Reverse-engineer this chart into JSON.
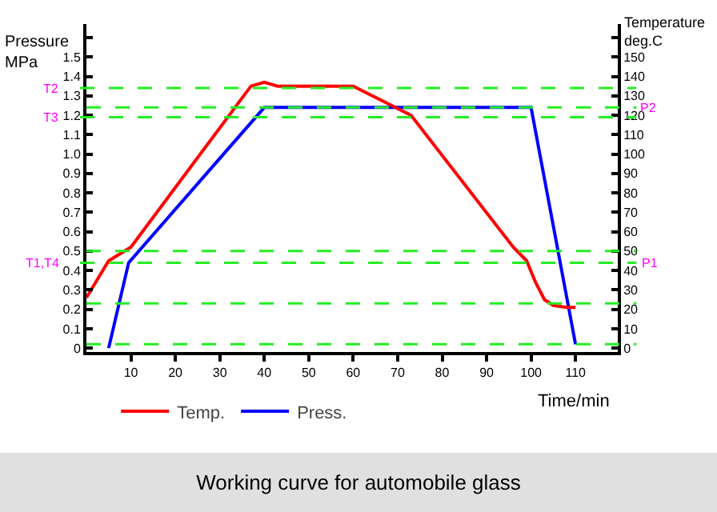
{
  "chart_data": {
    "type": "line",
    "title": "Working curve for automobile glass",
    "xlabel": "Time/min",
    "ylabel": "Pressure MPa",
    "y2label": "Temperature deg.C",
    "series": [
      {
        "name": "Temp.",
        "color": "#ff0000",
        "axis": "y2",
        "x": [
          0,
          5,
          10,
          37,
          40,
          43,
          60,
          73,
          96,
          99,
          101,
          103,
          105,
          108,
          110
        ],
        "values": [
          26,
          45,
          52,
          135,
          137,
          135,
          135,
          120,
          52,
          45,
          34,
          25,
          22,
          21,
          21
        ]
      },
      {
        "name": "Press.",
        "color": "#0000ff",
        "x": [
          5,
          9.5,
          40,
          100,
          110
        ],
        "values": [
          0,
          0.44,
          1.24,
          1.24,
          0.02
        ]
      }
    ],
    "xlim": [
      0,
      119.5
    ],
    "xticks": [
      10,
      20,
      30,
      40,
      50,
      60,
      70,
      80,
      90,
      100,
      110
    ],
    "ylim": [
      -0.02,
      1.67
    ],
    "yticks": [
      0,
      0.1,
      0.2,
      0.3,
      0.4,
      0.5,
      0.6,
      0.7,
      0.8,
      0.9,
      {
        "value": 1,
        "label": "1.0"
      },
      1.1,
      1.2,
      1.3,
      1.4,
      1.5,
      {
        "value": 1.6,
        "label": null
      }
    ],
    "y2lim": [
      -2,
      167
    ],
    "y2ticks": [
      0,
      10,
      20,
      30,
      40,
      50,
      60,
      70,
      80,
      90,
      100,
      110,
      120,
      130,
      140,
      150,
      {
        "value": 160,
        "label": null
      }
    ],
    "ref_lines": [
      {
        "axis": "y",
        "value": 1.34,
        "label": "T2",
        "color": "#22ee22",
        "line_style": "dashed"
      },
      {
        "axis": "y2",
        "value": 124,
        "label": "P2",
        "color": "#22ee22",
        "line_style": "dashed"
      },
      {
        "axis": "y",
        "value": 1.19,
        "label": "T3",
        "color": "#22ee22",
        "line_style": "dashed"
      },
      {
        "axis": "y",
        "value": 0.5,
        "label": null,
        "color": "#22ee22",
        "line_style": "dashed"
      },
      {
        "axis": "y",
        "value": 0.44,
        "label": "T1,T4",
        "color": "#22ee22",
        "line_style": "dashed"
      },
      {
        "axis": "y",
        "value": 0.23,
        "label": null,
        "color": "#22ee22",
        "line_style": "dashed"
      },
      {
        "axis": "y",
        "value": 0.02,
        "label": null,
        "color": "#22ee22",
        "line_style": "dashed"
      }
    ],
    "annotations": [
      {
        "text": "P1",
        "x": 119.5,
        "y": 0.44
      }
    ],
    "grid": false,
    "legend": "bottom",
    "marker": "none",
    "line_style": "solid"
  }
}
